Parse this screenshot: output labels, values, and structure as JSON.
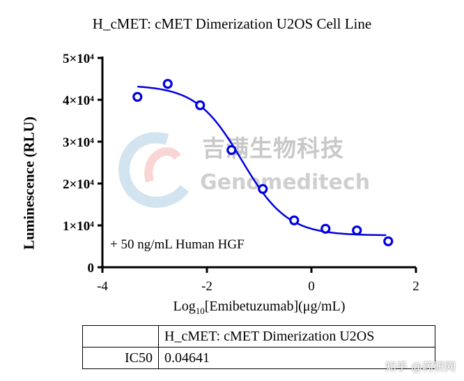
{
  "chart_data": {
    "type": "scatter",
    "title": "H_cMET: cMET Dimerization U2OS Cell Line",
    "xlabel": "Log10[Emibetuzumab](μg/mL)",
    "ylabel": "Luminescence (RLU)",
    "xlim": [
      -4,
      2
    ],
    "ylim": [
      0,
      50000
    ],
    "xticks": [
      "-4",
      "-2",
      "0",
      "2"
    ],
    "yticks": [
      "0",
      "1×10⁴",
      "2×10⁴",
      "3×10⁴",
      "4×10⁴",
      "5×10⁴"
    ],
    "annotation": "+ 50 ng/mL Human HGF",
    "color": "#0000e0",
    "x": [
      -3.33,
      -2.75,
      -2.13,
      -1.53,
      -0.93,
      -0.33,
      0.27,
      0.87,
      1.47
    ],
    "y": [
      40700,
      43800,
      38700,
      28000,
      18700,
      11200,
      9200,
      8800,
      6200
    ],
    "fit": {
      "model": "4PL",
      "top": 43500,
      "bottom": 7600,
      "log_ic50": -1.333,
      "hill": -1.0
    }
  },
  "watermark": {
    "cn": "吉满生物科技",
    "en": "Genomeditech",
    "corner": "知乎 @药研网"
  },
  "table": {
    "header": "H_cMET: cMET Dimerization U2OS",
    "row_label": "IC50",
    "row_value": "0.04641"
  }
}
